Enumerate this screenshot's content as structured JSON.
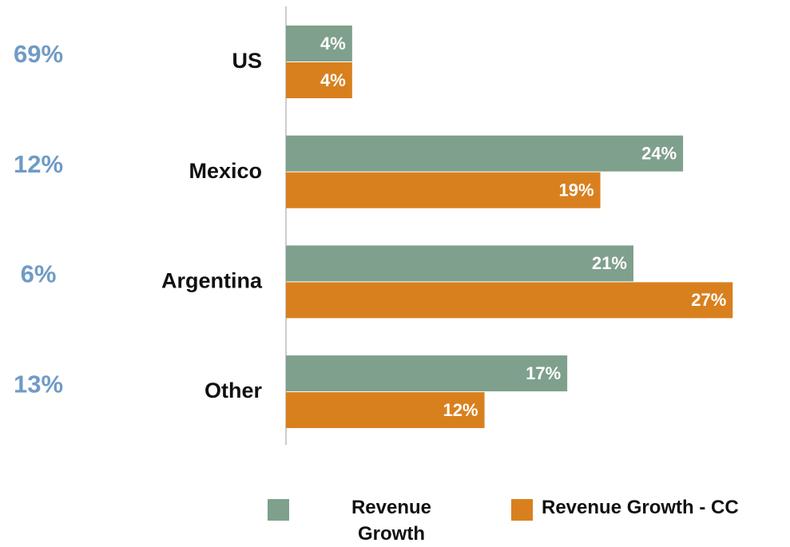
{
  "chart_data": {
    "type": "barh",
    "categories": [
      "US",
      "Mexico",
      "Argentina",
      "Other"
    ],
    "series": [
      {
        "name": "Revenue Growth",
        "color": "#7fa08c",
        "values": [
          4,
          24,
          21,
          17
        ],
        "value_labels": [
          "4%",
          "24%",
          "21%",
          "17%"
        ]
      },
      {
        "name": "Revenue Growth - CC",
        "color": "#d9801e",
        "values": [
          4,
          19,
          27,
          12
        ],
        "value_labels": [
          "4%",
          "19%",
          "27%",
          "12%"
        ]
      }
    ],
    "shares": {
      "color": "#6f9bc6",
      "values": [
        69,
        12,
        6,
        13
      ],
      "value_labels": [
        "69%",
        "12%",
        "6%",
        "13%"
      ]
    },
    "xlim": [
      0,
      28
    ]
  }
}
